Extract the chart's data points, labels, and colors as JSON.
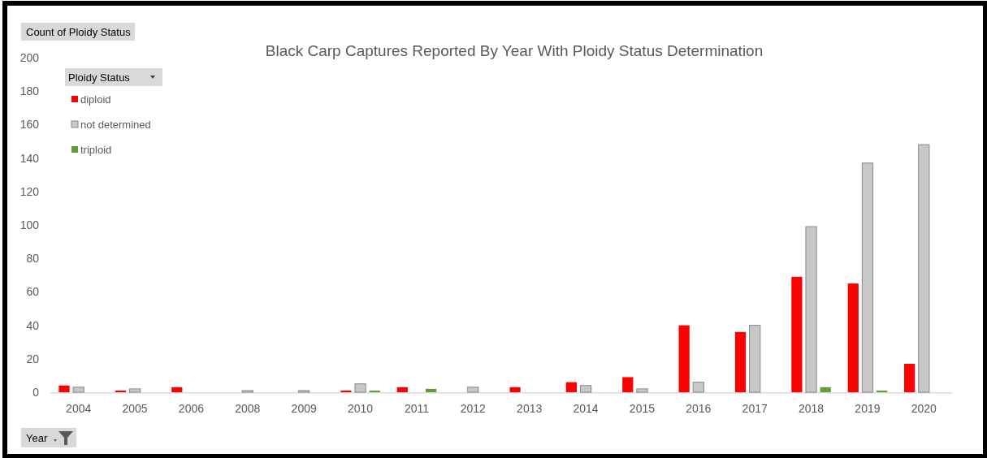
{
  "chart_data": {
    "type": "bar",
    "title": "Black Carp Captures Reported By Year With Ploidy Status Determination",
    "ylabel": "Count of Ploidy Status",
    "xlabel": "Year",
    "legend_title": "Ploidy Status",
    "categories": [
      "2004",
      "2005",
      "2006",
      "2008",
      "2009",
      "2010",
      "2011",
      "2012",
      "2013",
      "2014",
      "2015",
      "2016",
      "2017",
      "2018",
      "2019",
      "2020"
    ],
    "series": [
      {
        "name": "diploid",
        "color": "#ff0000",
        "values": [
          4,
          1,
          3,
          null,
          null,
          1,
          3,
          null,
          3,
          6,
          9,
          40,
          36,
          69,
          65,
          17
        ]
      },
      {
        "name": "not determined",
        "color": "#c8c8c8",
        "values": [
          3,
          2,
          null,
          1,
          1,
          5,
          null,
          3,
          null,
          4,
          2,
          6,
          40,
          99,
          137,
          148
        ]
      },
      {
        "name": "triploid",
        "color": "#5f9e3a",
        "values": [
          null,
          null,
          null,
          null,
          null,
          1,
          2,
          null,
          null,
          null,
          null,
          null,
          null,
          3,
          1,
          null
        ]
      }
    ],
    "ylim": [
      0,
      200
    ],
    "yticks": [
      0,
      20,
      40,
      60,
      80,
      100,
      120,
      140,
      160,
      180,
      200
    ],
    "grid": false,
    "legend": "top left"
  }
}
